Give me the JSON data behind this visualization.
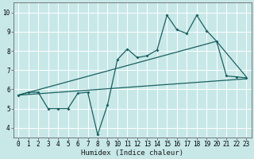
{
  "xlabel": "Humidex (Indice chaleur)",
  "bg_color": "#c8e8e8",
  "grid_color": "#ffffff",
  "line_color": "#1a6060",
  "xlim": [
    -0.5,
    23.5
  ],
  "ylim": [
    3.5,
    10.5
  ],
  "xticks": [
    0,
    1,
    2,
    3,
    4,
    5,
    6,
    7,
    8,
    9,
    10,
    11,
    12,
    13,
    14,
    15,
    16,
    17,
    18,
    19,
    20,
    21,
    22,
    23
  ],
  "yticks": [
    4,
    5,
    6,
    7,
    8,
    9,
    10
  ],
  "line1_x": [
    0,
    1,
    2,
    3,
    4,
    5,
    6,
    7,
    8,
    9,
    10,
    11,
    12,
    13,
    14,
    15,
    16,
    17,
    18,
    19,
    20,
    21,
    22,
    23
  ],
  "line1_y": [
    5.7,
    5.85,
    5.85,
    5.0,
    5.0,
    5.0,
    5.8,
    5.85,
    3.65,
    5.2,
    7.55,
    8.1,
    7.65,
    7.75,
    8.05,
    9.85,
    9.1,
    8.9,
    9.85,
    9.05,
    8.5,
    6.7,
    6.65,
    6.6
  ],
  "line2_x": [
    0,
    23
  ],
  "line2_y": [
    5.7,
    6.55
  ],
  "line3_x": [
    0,
    20,
    23
  ],
  "line3_y": [
    5.7,
    8.5,
    6.65
  ],
  "xlabel_fontsize": 6.5,
  "tick_fontsize": 5.5
}
